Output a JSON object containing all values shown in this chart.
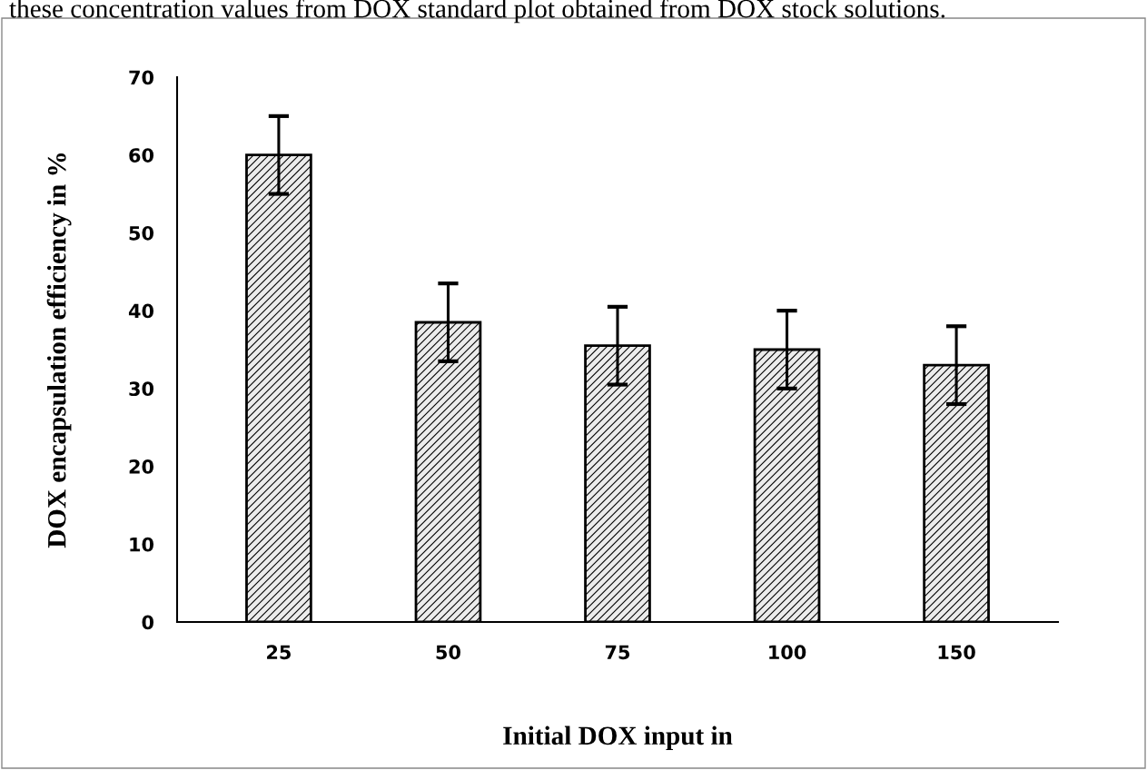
{
  "chart_data": {
    "type": "bar",
    "xlabel": "Initial DOX input in",
    "ylabel": "DOX encapsulation efficiency in %",
    "annotations": [
      "these concentration values from DOX standard plot obtained from DOX stock solutions."
    ],
    "categories": [
      "25",
      "50",
      "75",
      "100",
      "150"
    ],
    "values": [
      60,
      38.5,
      35.5,
      35,
      33
    ],
    "errors": [
      5,
      5,
      5,
      5,
      5
    ],
    "color": "#000000",
    "ylim": [
      0,
      70
    ],
    "yticks": [
      0,
      10,
      20,
      30,
      40,
      50,
      60,
      70
    ],
    "grid": false
  }
}
